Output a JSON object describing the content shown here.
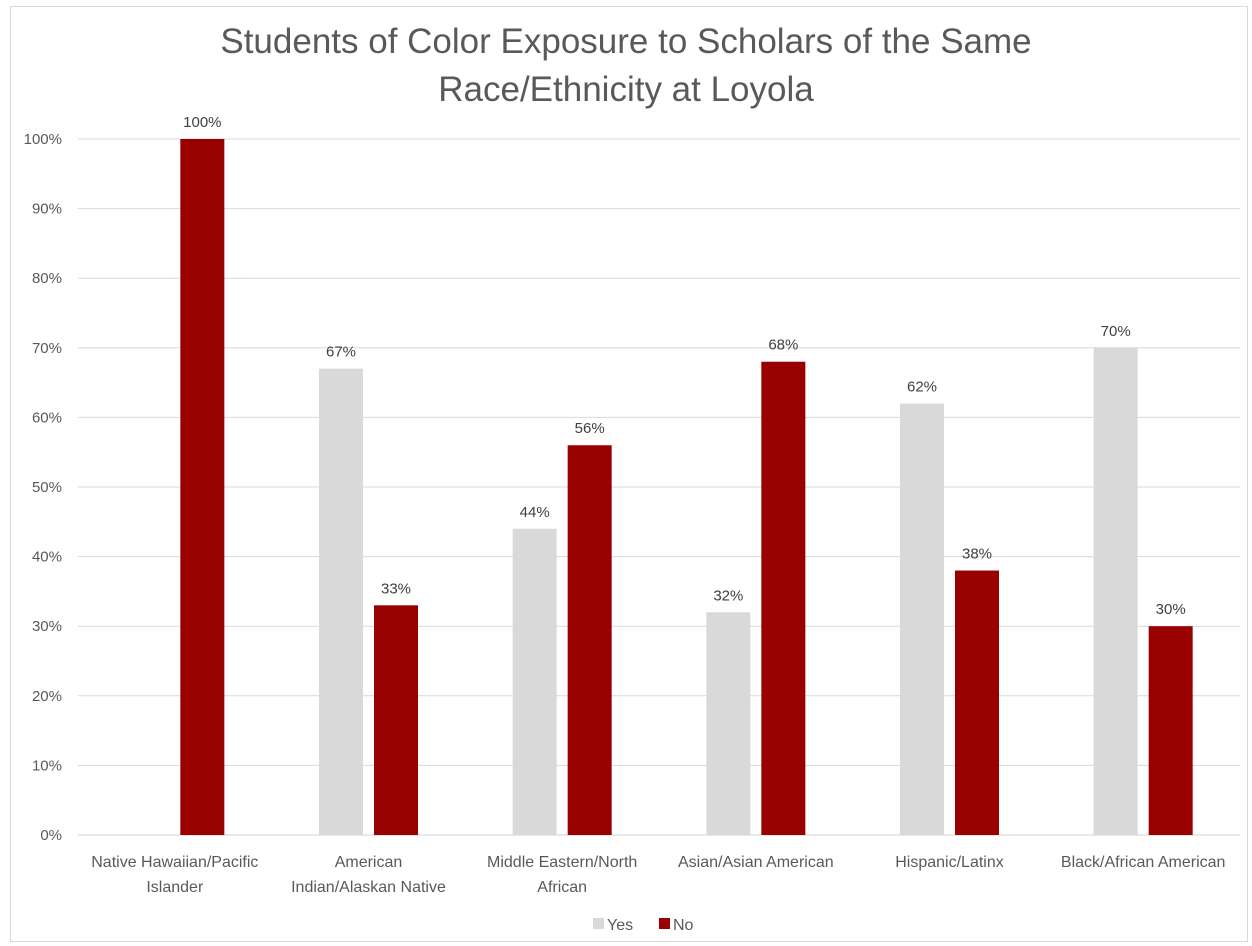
{
  "chart_data": {
    "type": "bar",
    "title": "Students of Color Exposure to Scholars of the Same\nRace/Ethnicity at Loyola",
    "categories": [
      "Native Hawaiian/Pacific Islander",
      "American Indian/Alaskan Native",
      "Middle Eastern/North African",
      "Asian/Asian American",
      "Hispanic/Latinx",
      "Black/African American"
    ],
    "category_label_lines": [
      [
        "Native Hawaiian/Pacific",
        "Islander"
      ],
      [
        "American",
        "Indian/Alaskan Native"
      ],
      [
        "Middle Eastern/North",
        "African"
      ],
      [
        "Asian/Asian American"
      ],
      [
        "Hispanic/Latinx"
      ],
      [
        "Black/African American"
      ]
    ],
    "series": [
      {
        "name": "Yes",
        "color": "#d9d9d9",
        "values": [
          null,
          67,
          44,
          32,
          62,
          70
        ],
        "labels": [
          "",
          "67%",
          "44%",
          "32%",
          "62%",
          "70%"
        ]
      },
      {
        "name": "No",
        "color": "#990000",
        "values": [
          100,
          33,
          56,
          68,
          38,
          30
        ],
        "labels": [
          "100%",
          "33%",
          "56%",
          "68%",
          "38%",
          "30%"
        ]
      }
    ],
    "yticks": [
      "0%",
      "10%",
      "20%",
      "30%",
      "40%",
      "50%",
      "60%",
      "70%",
      "80%",
      "90%",
      "100%"
    ],
    "ylim": [
      0,
      100
    ],
    "xlabel": "",
    "ylabel": "",
    "grid": true,
    "legend_position": "bottom"
  }
}
